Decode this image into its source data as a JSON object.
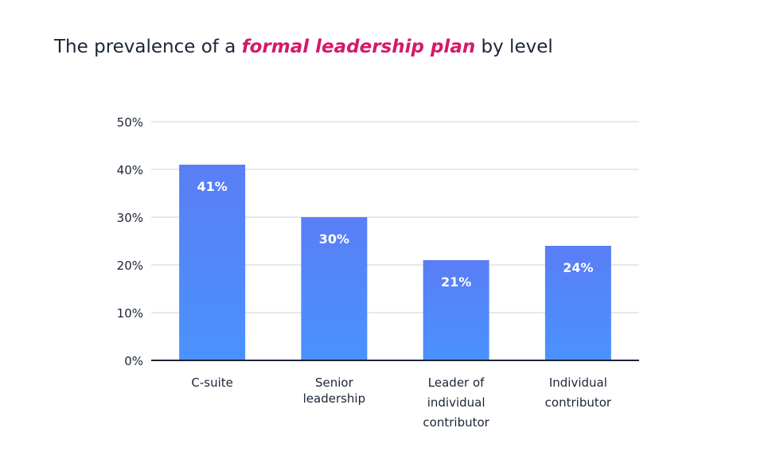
{
  "header": {
    "title_before": "The prevalence of a ",
    "title_highlight": "formal leadership plan",
    "title_after": " by level"
  },
  "colors": {
    "highlight": "#d4196c",
    "bar_top": "#5a7ef5",
    "bar_bottom": "#4a92fd",
    "grid": "#dfe2e7",
    "axis": "#1b2537",
    "bar_label": "#ffffff"
  },
  "chart_data": {
    "type": "bar",
    "title": "The prevalence of a formal leadership plan by level",
    "xlabel": "",
    "ylabel": "",
    "categories": [
      [
        "C-suite"
      ],
      [
        "Senior",
        "leadership"
      ],
      [
        "Leader of",
        "individual",
        "contributor"
      ],
      [
        "Individual",
        "contributor"
      ]
    ],
    "values": [
      41,
      30,
      21,
      24
    ],
    "value_labels": [
      "41%",
      "30%",
      "21%",
      "24%"
    ],
    "ylim": [
      0,
      50
    ],
    "yticks": [
      0,
      10,
      20,
      30,
      40,
      50
    ],
    "ytick_labels": [
      "0%",
      "10%",
      "20%",
      "30%",
      "40%",
      "50%"
    ],
    "grid": true,
    "legend": "none"
  }
}
